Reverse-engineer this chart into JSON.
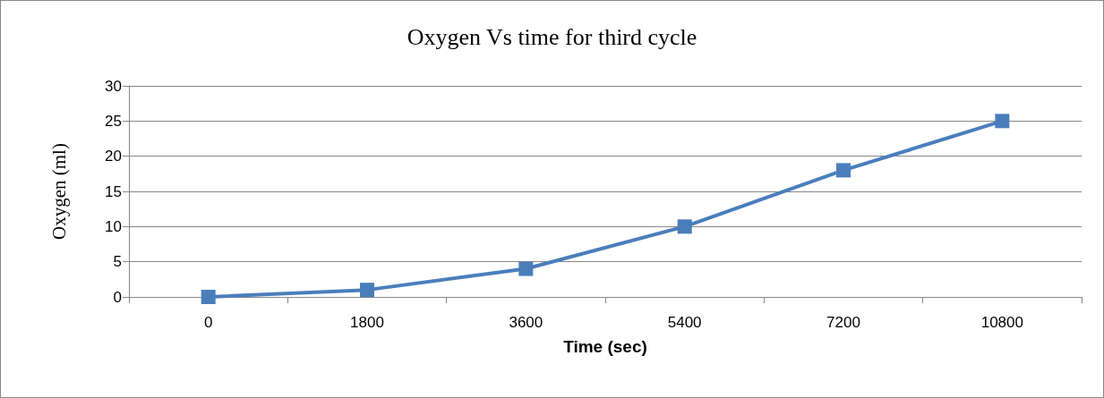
{
  "chart_data": {
    "type": "line",
    "title": "Oxygen Vs time for third cycle",
    "xlabel": "Time (sec)",
    "ylabel": "Oxygen (ml)",
    "categories": [
      "0",
      "1800",
      "3600",
      "5400",
      "7200",
      "10800"
    ],
    "series": [
      {
        "color": "#4a7ebb",
        "values": [
          0,
          1,
          4,
          10,
          18,
          25
        ]
      }
    ],
    "ylim": [
      0,
      30
    ],
    "yticks": [
      0,
      5,
      10,
      15,
      20,
      25,
      30
    ],
    "grid": "y",
    "marker": "square",
    "line_style": "solid"
  }
}
